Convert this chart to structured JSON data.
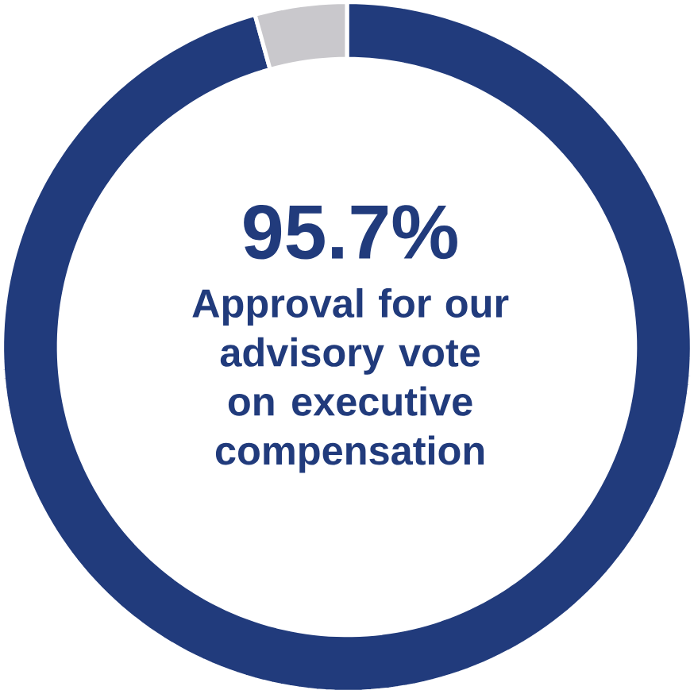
{
  "chart_data": {
    "type": "donut",
    "categories": [
      null,
      null
    ],
    "values": [
      95.7,
      4.3
    ],
    "colors": [
      "#213b7c",
      "#c9c8cc"
    ],
    "value_labels": [
      "95.7%",
      null
    ],
    "annotations": [
      "Approval for our advisory vote on executive compensation"
    ]
  }
}
